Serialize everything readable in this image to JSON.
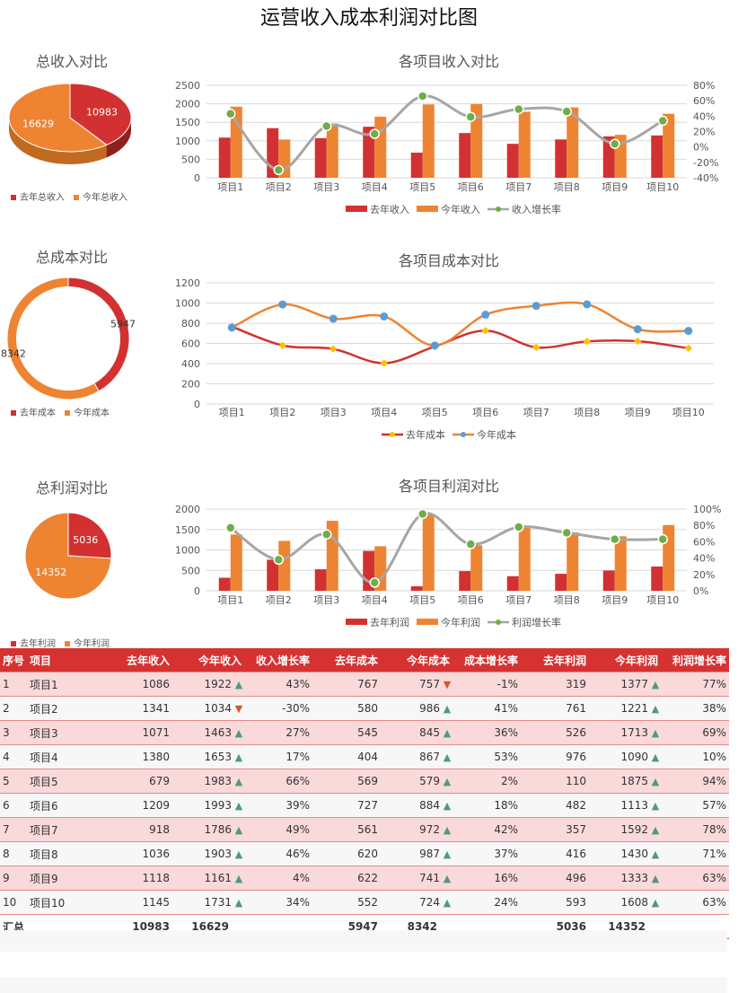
{
  "title": "运营收入成本利润对比图",
  "colors": {
    "red": "#d33131",
    "orange": "#ee8432",
    "gray": "#a6a6a6",
    "green": "#70ad47",
    "blue": "#5b9bd5",
    "yellow": "#ffc000"
  },
  "summary": [
    {
      "title": "总收入对比",
      "type": "pie3d",
      "last": 10983,
      "this": 16629,
      "labels": [
        "去年总收入",
        "今年总收入"
      ]
    },
    {
      "title": "总成本对比",
      "type": "donut",
      "last": 5947,
      "this": 8342,
      "labels": [
        "去年成本",
        "今年成本"
      ]
    },
    {
      "title": "总利润对比",
      "type": "pie",
      "last": 5036,
      "this": 14352,
      "labels": [
        "去年利润",
        "今年利润"
      ]
    }
  ],
  "chart_data": [
    {
      "type": "bar",
      "title": "各项目收入对比",
      "categories": [
        "项目1",
        "项目2",
        "项目3",
        "项目4",
        "项目5",
        "项目6",
        "项目7",
        "项目8",
        "项目9",
        "项目10"
      ],
      "series": [
        {
          "name": "去年收入",
          "values": [
            1086,
            1341,
            1071,
            1380,
            679,
            1209,
            918,
            1036,
            1118,
            1145
          ]
        },
        {
          "name": "今年收入",
          "values": [
            1922,
            1034,
            1463,
            1653,
            1983,
            1993,
            1786,
            1903,
            1161,
            1731
          ]
        },
        {
          "name": "收入增长率",
          "axis": "right",
          "values": [
            43,
            -30,
            27,
            17,
            66,
            39,
            49,
            46,
            4,
            34
          ]
        }
      ],
      "ylim": [
        0,
        2500
      ],
      "yticks": [
        0,
        500,
        1000,
        1500,
        2000,
        2500
      ],
      "y2lim": [
        -40,
        80
      ],
      "y2ticks": [
        "-40%",
        "-20%",
        "0%",
        "20%",
        "40%",
        "60%",
        "80%"
      ],
      "legend": "bottom",
      "grid": true
    },
    {
      "type": "line",
      "title": "各项目成本对比",
      "categories": [
        "项目1",
        "项目2",
        "项目3",
        "项目4",
        "项目5",
        "项目6",
        "项目7",
        "项目8",
        "项目9",
        "项目10"
      ],
      "series": [
        {
          "name": "去年成本",
          "values": [
            767,
            580,
            545,
            404,
            569,
            727,
            561,
            620,
            622,
            552
          ]
        },
        {
          "name": "今年成本",
          "values": [
            757,
            986,
            845,
            867,
            579,
            884,
            972,
            987,
            741,
            724
          ]
        }
      ],
      "ylim": [
        0,
        1200
      ],
      "yticks": [
        0,
        200,
        400,
        600,
        800,
        1000,
        1200
      ],
      "legend": "bottom",
      "grid": true
    },
    {
      "type": "bar",
      "title": "各项目利润对比",
      "categories": [
        "项目1",
        "项目2",
        "项目3",
        "项目4",
        "项目5",
        "项目6",
        "项目7",
        "项目8",
        "项目9",
        "项目10"
      ],
      "series": [
        {
          "name": "去年利润",
          "values": [
            319,
            761,
            526,
            976,
            110,
            482,
            357,
            416,
            496,
            593
          ]
        },
        {
          "name": "今年利润",
          "values": [
            1377,
            1221,
            1713,
            1090,
            1875,
            1113,
            1592,
            1430,
            1333,
            1608
          ]
        },
        {
          "name": "利润增长率",
          "axis": "right",
          "values": [
            77,
            38,
            69,
            10,
            94,
            57,
            78,
            71,
            63,
            63
          ]
        }
      ],
      "ylim": [
        0,
        2000
      ],
      "yticks": [
        0,
        500,
        1000,
        1500,
        2000
      ],
      "y2lim": [
        0,
        100
      ],
      "y2ticks": [
        "0%",
        "20%",
        "40%",
        "60%",
        "80%",
        "100%"
      ],
      "legend": "bottom",
      "grid": true
    }
  ],
  "table": {
    "headers": [
      "序号",
      "项目",
      "去年收入",
      "今年收入",
      "收入增长率",
      "去年成本",
      "今年成本",
      "成本增长率",
      "去年利润",
      "今年利润",
      "利润增长率"
    ],
    "rows": [
      [
        "1",
        "项目1",
        "1086",
        "1922",
        "43%",
        "767",
        "757",
        "-1%",
        "319",
        "1377",
        "77%"
      ],
      [
        "2",
        "项目2",
        "1341",
        "1034",
        "-30%",
        "580",
        "986",
        "41%",
        "761",
        "1221",
        "38%"
      ],
      [
        "3",
        "项目3",
        "1071",
        "1463",
        "27%",
        "545",
        "845",
        "36%",
        "526",
        "1713",
        "69%"
      ],
      [
        "4",
        "项目4",
        "1380",
        "1653",
        "17%",
        "404",
        "867",
        "53%",
        "976",
        "1090",
        "10%"
      ],
      [
        "5",
        "项目5",
        "679",
        "1983",
        "66%",
        "569",
        "579",
        "2%",
        "110",
        "1875",
        "94%"
      ],
      [
        "6",
        "项目6",
        "1209",
        "1993",
        "39%",
        "727",
        "884",
        "18%",
        "482",
        "1113",
        "57%"
      ],
      [
        "7",
        "项目7",
        "918",
        "1786",
        "49%",
        "561",
        "972",
        "42%",
        "357",
        "1592",
        "78%"
      ],
      [
        "8",
        "项目8",
        "1036",
        "1903",
        "46%",
        "620",
        "987",
        "37%",
        "416",
        "1430",
        "71%"
      ],
      [
        "9",
        "项目9",
        "1118",
        "1161",
        "4%",
        "622",
        "741",
        "16%",
        "496",
        "1333",
        "63%"
      ],
      [
        "10",
        "项目10",
        "1145",
        "1731",
        "34%",
        "552",
        "724",
        "24%",
        "593",
        "1608",
        "63%"
      ]
    ],
    "total": [
      "汇总",
      "",
      "10983",
      "16629",
      "",
      "5947",
      "8342",
      "",
      "5036",
      "14352",
      ""
    ]
  }
}
